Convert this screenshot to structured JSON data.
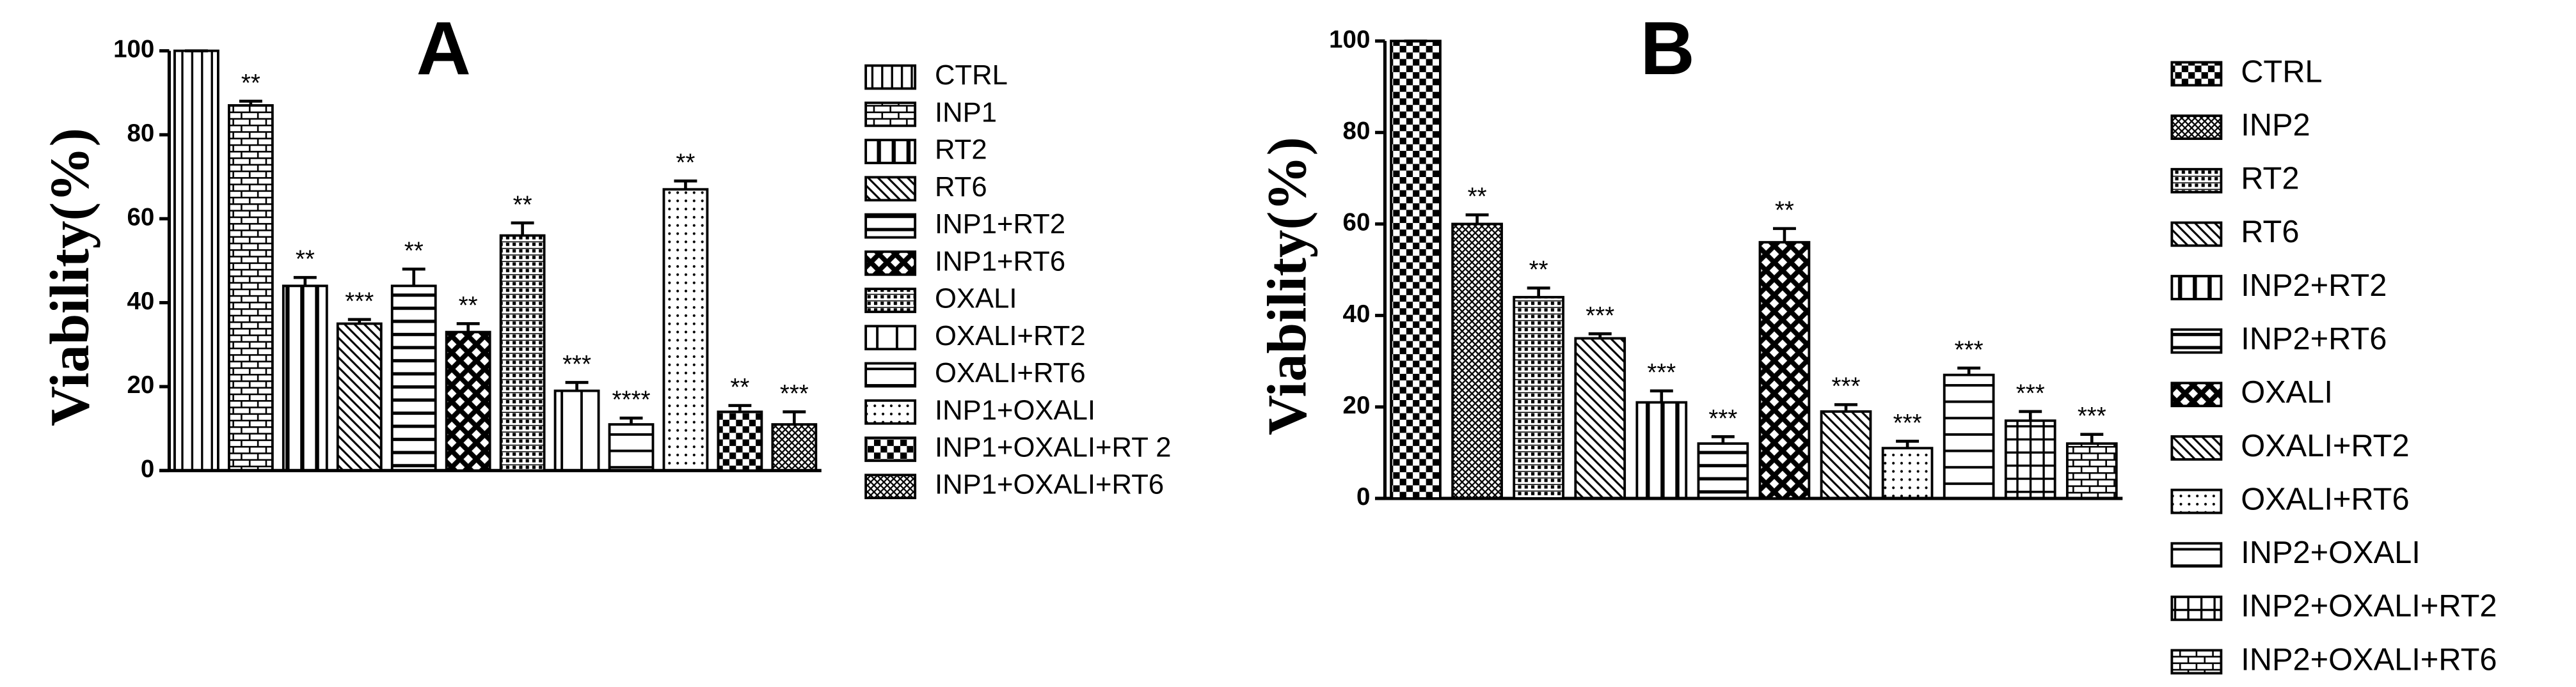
{
  "chart_data": [
    {
      "type": "bar",
      "title": "A",
      "y_label": "Viability(%)",
      "categories": [
        "CTRL",
        "INP1",
        "RT2",
        "RT6",
        "INP1+RT2",
        "INP1+RT6",
        "OXALI",
        "OXALI+RT2",
        "OXALI+RT6",
        "INP1+OXALI",
        "INP1+OXALI+RT 2",
        "INP1+OXALI+RT6"
      ],
      "values": [
        100,
        87,
        44,
        35,
        44,
        33,
        56,
        19,
        11,
        67,
        14,
        11
      ],
      "errors": [
        0,
        1,
        2,
        1,
        4,
        2,
        3,
        2,
        1.5,
        2,
        1.5,
        3
      ],
      "value_labels": [
        null,
        "**",
        "**",
        "***",
        "**",
        "**",
        "**",
        "***",
        "****",
        "**",
        "**",
        "***"
      ],
      "ylim": [
        0,
        100
      ],
      "yticks": [
        0,
        20,
        40,
        60,
        80,
        100
      ],
      "grid": false
    },
    {
      "type": "bar",
      "title": "B",
      "y_label": "Viability(%)",
      "categories": [
        "CTRL",
        "INP2",
        "RT2",
        "RT6",
        "INP2+RT2",
        "INP2+RT6",
        "OXALI",
        "OXALI+RT2",
        "OXALI+RT6",
        "INP2+OXALI",
        "INP2+OXALI+RT2",
        "INP2+OXALI+RT6"
      ],
      "values": [
        100,
        60,
        44,
        35,
        21,
        12,
        56,
        19,
        11,
        27,
        17,
        12
      ],
      "errors": [
        0,
        2,
        2,
        1,
        2.5,
        1.5,
        3,
        1.5,
        1.5,
        1.5,
        2,
        2
      ],
      "value_labels": [
        null,
        "**",
        "**",
        "***",
        "***",
        "***",
        "**",
        "***",
        "***",
        "***",
        "***",
        "***"
      ],
      "ylim": [
        0,
        100
      ],
      "yticks": [
        0,
        20,
        40,
        60,
        80,
        100
      ],
      "grid": false
    }
  ]
}
